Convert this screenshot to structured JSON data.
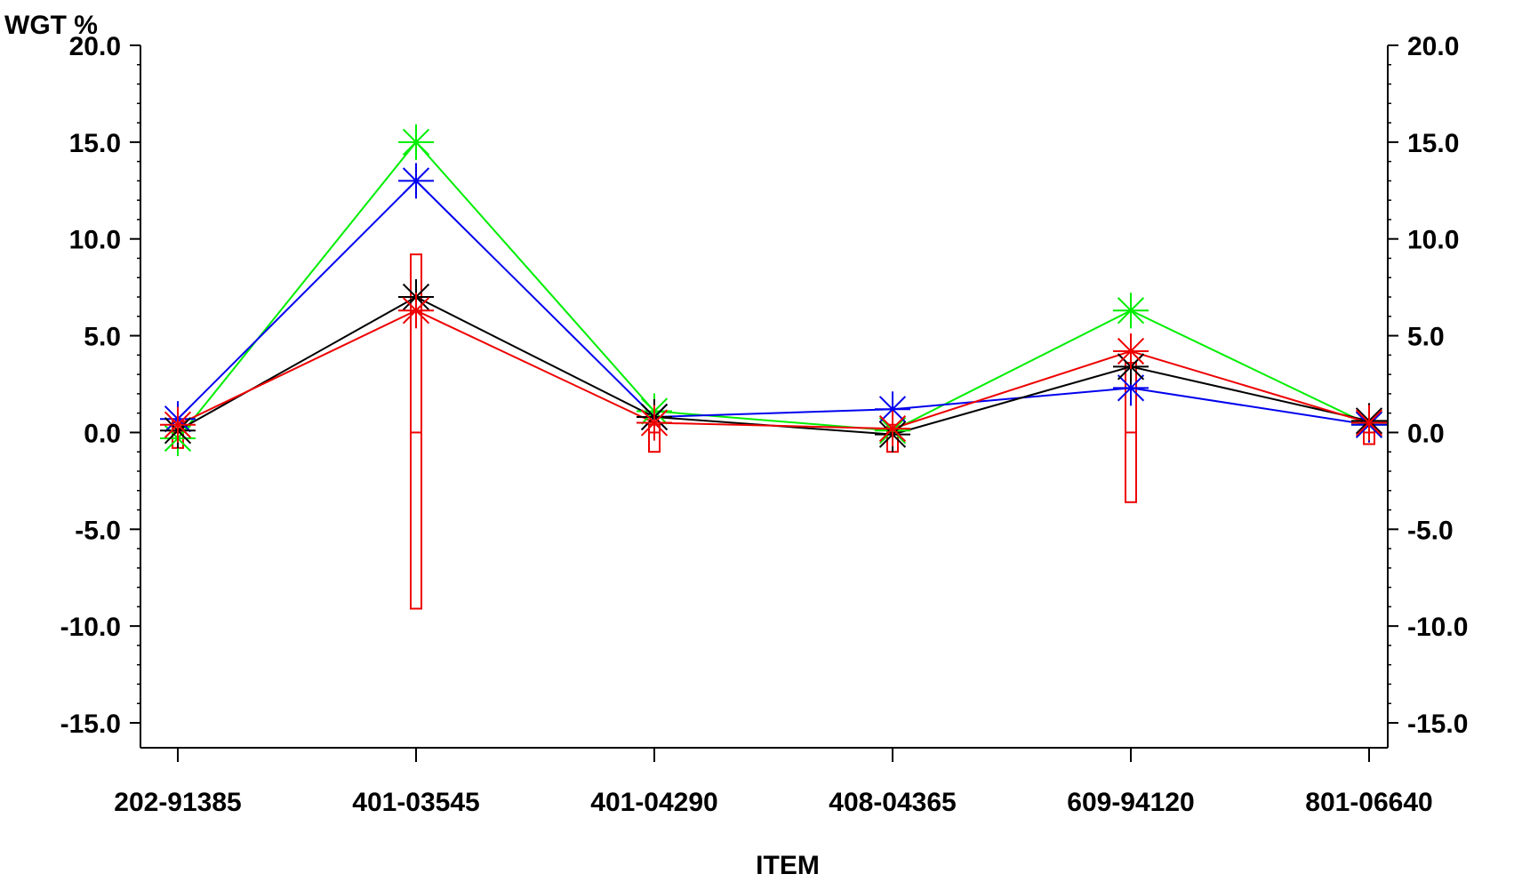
{
  "chart_data": {
    "type": "line",
    "ylabel": "WGT %",
    "xlabel": "ITEM",
    "categories": [
      "202-91385",
      "401-03545",
      "401-04290",
      "408-04365",
      "609-94120",
      "801-06640"
    ],
    "ylim": [
      -15,
      20
    ],
    "yticks": [
      -15,
      -10,
      -5,
      0,
      5,
      10,
      15,
      20
    ],
    "ytick_labels": [
      "-15.0",
      "-10.0",
      "-5.0",
      "0.0",
      "5.0",
      "10.0",
      "15.0",
      "20.0"
    ],
    "minor_ytick_step": 1,
    "right_axis": true,
    "grid": false,
    "legend": "none",
    "marker": "asterisk",
    "series": [
      {
        "color": "#00ee00",
        "values": [
          -0.3,
          15.0,
          1.1,
          0.1,
          6.3,
          0.4
        ]
      },
      {
        "color": "#0000ee",
        "values": [
          0.7,
          13.0,
          0.8,
          1.2,
          2.3,
          0.4
        ]
      },
      {
        "color": "#000000",
        "values": [
          0.1,
          7.0,
          0.8,
          -0.1,
          3.4,
          0.6
        ]
      },
      {
        "color": "#ee0000",
        "values": [
          0.4,
          6.3,
          0.5,
          0.2,
          4.2,
          0.5
        ]
      }
    ],
    "limit_bars": {
      "color": "#ee0000",
      "center": [
        0,
        0,
        0,
        0,
        0,
        0
      ],
      "upper": [
        0.6,
        9.2,
        0.4,
        0.4,
        3.6,
        0.4
      ],
      "lower": [
        -0.8,
        -9.1,
        -1.0,
        -1.0,
        -3.6,
        -0.6
      ]
    }
  }
}
